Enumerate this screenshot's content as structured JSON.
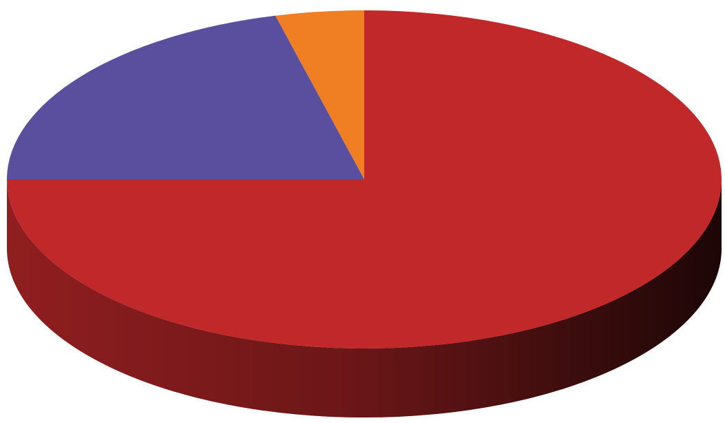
{
  "chart_data": {
    "type": "pie",
    "values": [
      4,
      21,
      75
    ],
    "colors": [
      "#f07e22",
      "#5a4f9e",
      "#c0282a"
    ]
  }
}
